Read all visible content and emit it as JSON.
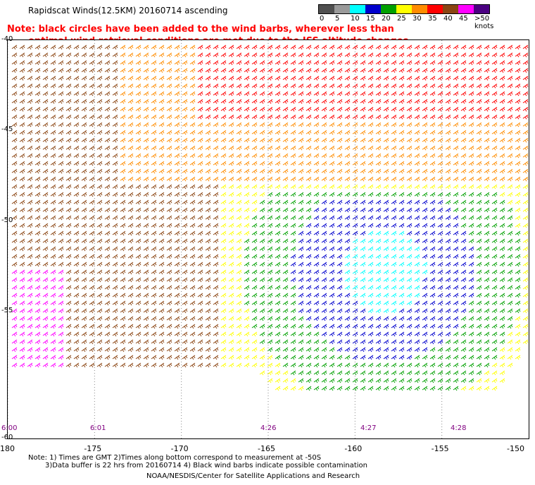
{
  "title": "Rapidscat Winds(12.5KM) 20160714 ascending",
  "note": {
    "line1": "Note: black circles have been added to the wind barbs, wherever less than",
    "line2": "optimal wind retrieval conditions are met due to the ISS altitude changes."
  },
  "legend": {
    "labels": [
      "0",
      "5",
      "10",
      "15",
      "20",
      "25",
      "30",
      "35",
      "40",
      "45",
      ">50 knots"
    ],
    "colors": [
      "#505050",
      "#9a9a9a",
      "#00ffff",
      "#0000cd",
      "#00a000",
      "#ffff00",
      "#ff8c00",
      "#ff0000",
      "#8b4513",
      "#ff00ff",
      "#4b0082"
    ]
  },
  "axes": {
    "lat_labels": [
      "-40",
      "-45",
      "-50",
      "-55",
      "-60"
    ],
    "lon_labels": [
      "-180",
      "-175",
      "-170",
      "-165",
      "-160",
      "-155",
      "-150"
    ]
  },
  "times": [
    "6:00",
    "6:01",
    "4:26",
    "4:27",
    "4:28"
  ],
  "footnote": {
    "line1": "Note: 1) Times are GMT 2)Times along bottom correspond to measurement at -50S",
    "line2": "3)Data buffer is 22 hrs from 20160714 4) Black wind barbs indicate possible contamination"
  },
  "credit": "NOAA/NESDIS/Center for Satellite Applications and Research"
}
